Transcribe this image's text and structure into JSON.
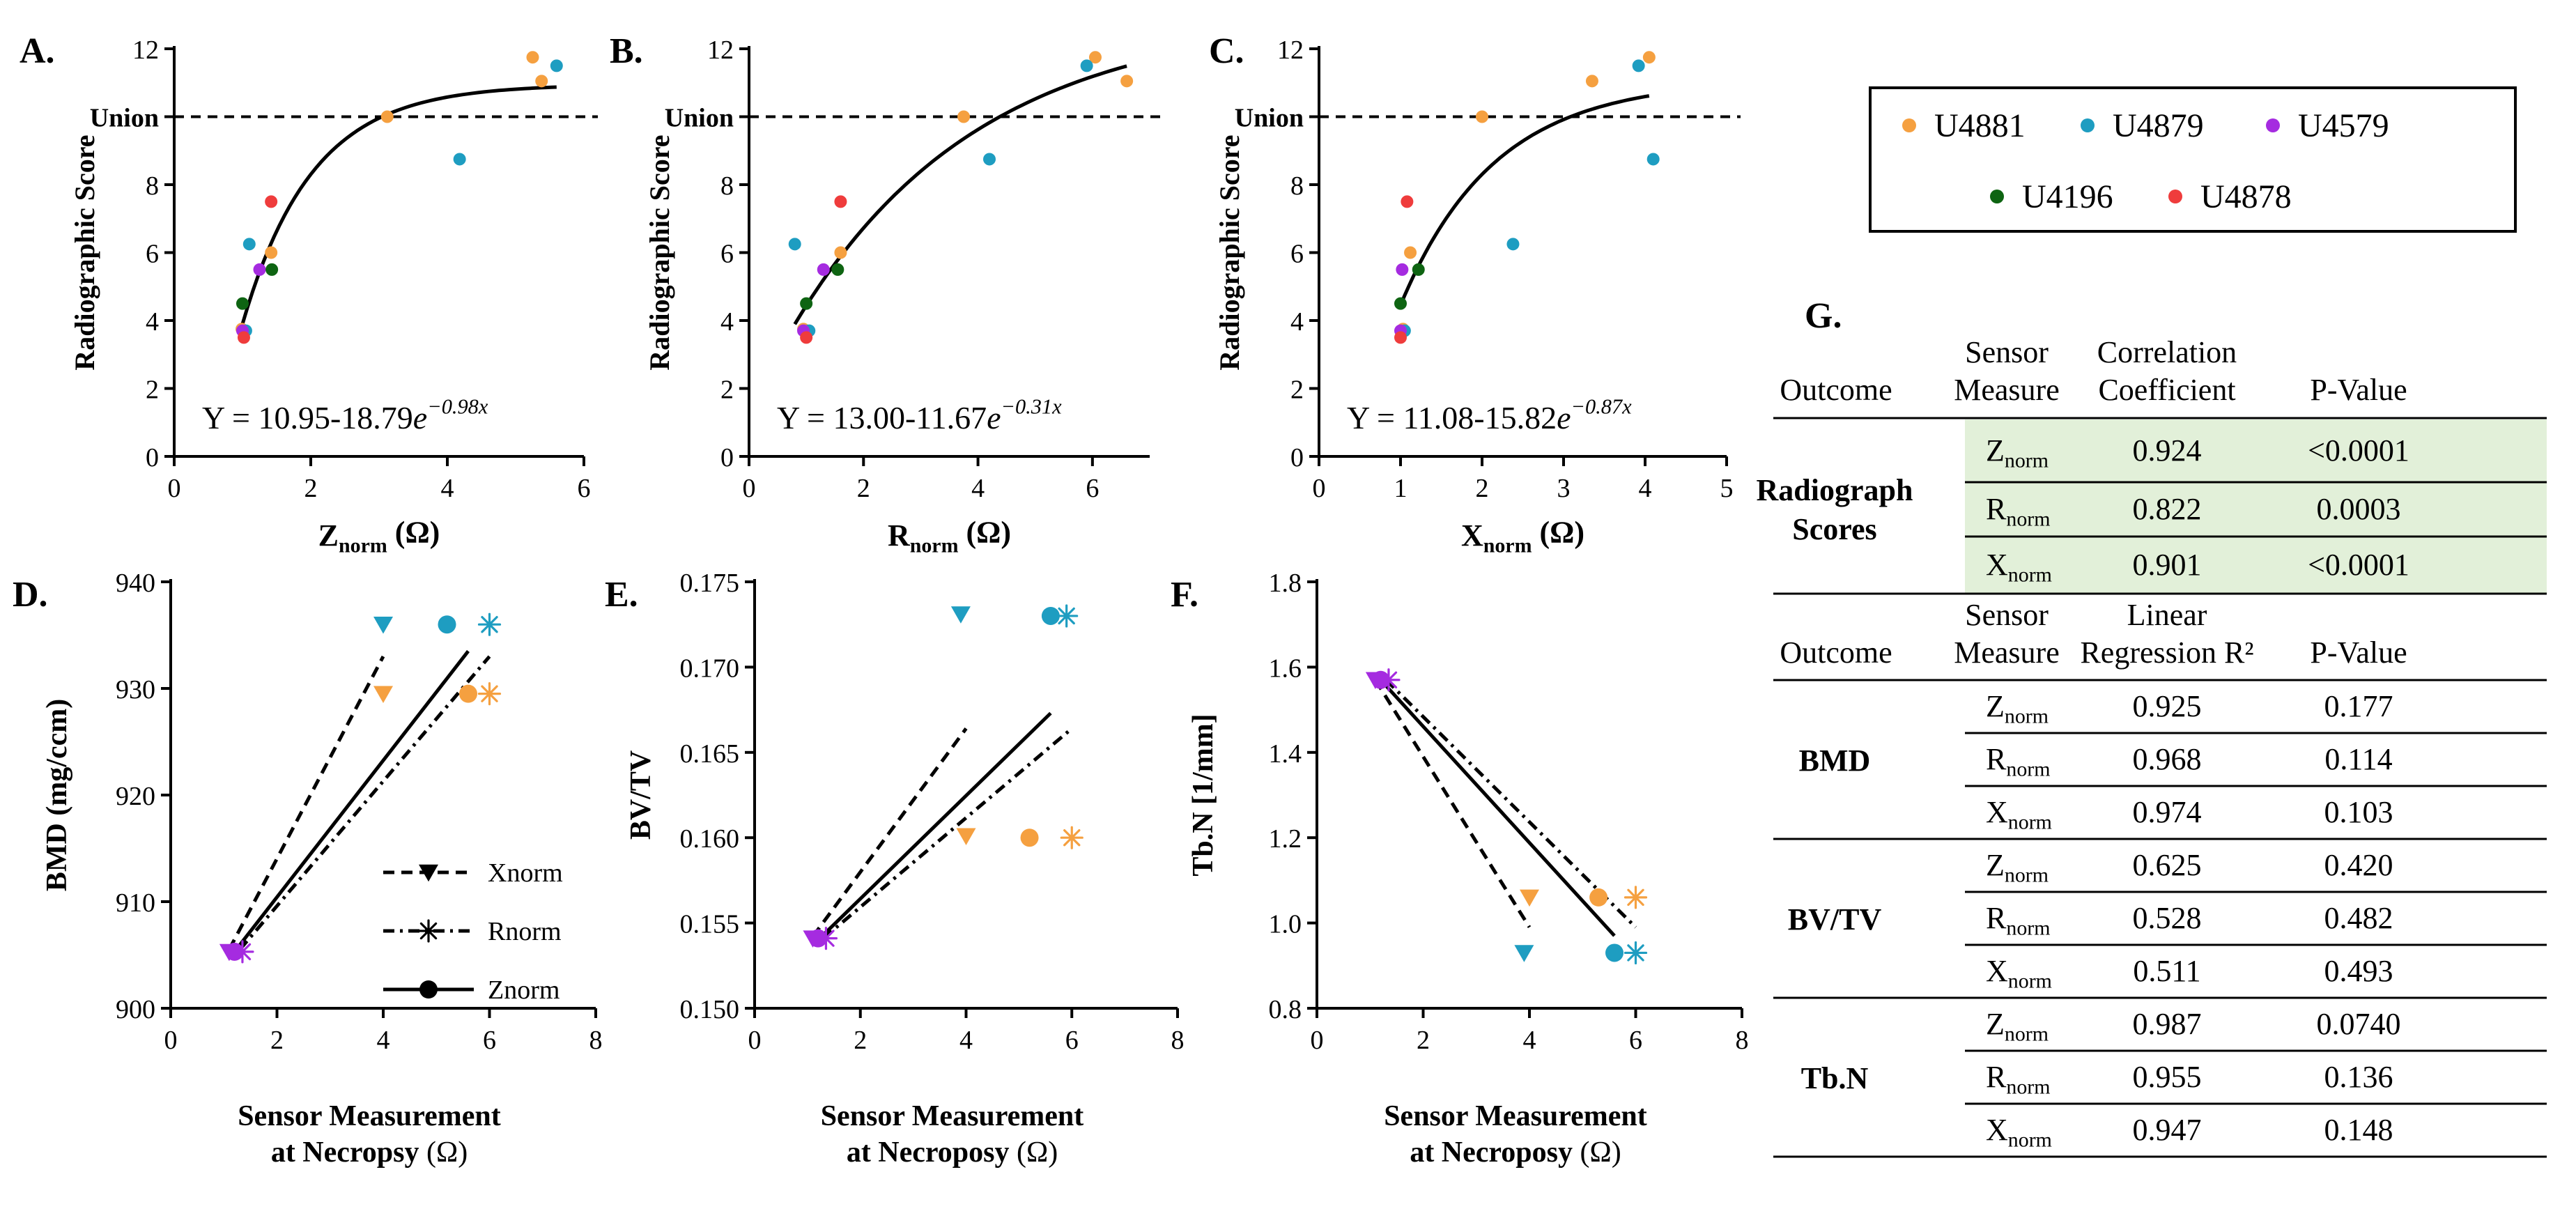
{
  "colors": {
    "U4881": "#F5A040",
    "U4879": "#1E9DC1",
    "U4579": "#A52BE0",
    "U4196": "#0E6412",
    "U4878": "#EF3C3C",
    "axis": "#000000",
    "table_highlight": "#E2F0D9"
  },
  "legend": {
    "entries": [
      {
        "name": "U4881",
        "color": "#F5A040"
      },
      {
        "name": "U4879",
        "color": "#1E9DC1"
      },
      {
        "name": "U4579",
        "color": "#A52BE0"
      },
      {
        "name": "U4196",
        "color": "#0E6412"
      },
      {
        "name": "U4878",
        "color": "#EF3C3C"
      }
    ]
  },
  "chart_data": [
    {
      "panel": "A.",
      "type": "scatter",
      "xlabel_main": "Z",
      "xlabel_sub": "norm",
      "xlabel_unit": " (Ω)",
      "ylabel": "Radiographic Score",
      "xlim": [
        0,
        6
      ],
      "ylim": [
        0,
        12
      ],
      "xticks": [
        0,
        2,
        4,
        6
      ],
      "yticks": [
        0,
        2,
        4,
        6,
        8,
        10,
        12
      ],
      "ytick_labels": [
        "0",
        "2",
        "4",
        "6",
        "8",
        "Union",
        "12"
      ],
      "reference_line": {
        "y": 10,
        "label": "Union",
        "style": "dashed"
      },
      "fit": {
        "a": 10.95,
        "b": 18.79,
        "k": 0.98,
        "x_range": [
          1.0,
          5.6
        ]
      },
      "equation": {
        "prefix": "Y = 10.95-18.79",
        "base": "e",
        "exponent": "−0.98x"
      },
      "points": [
        {
          "x": 0.99,
          "y": 3.75,
          "group": "U4881"
        },
        {
          "x": 1.42,
          "y": 6.0,
          "group": "U4881"
        },
        {
          "x": 3.12,
          "y": 10.0,
          "group": "U4881"
        },
        {
          "x": 5.25,
          "y": 11.75,
          "group": "U4881"
        },
        {
          "x": 5.38,
          "y": 11.05,
          "group": "U4881"
        },
        {
          "x": 1.05,
          "y": 3.7,
          "group": "U4879"
        },
        {
          "x": 1.1,
          "y": 6.25,
          "group": "U4879"
        },
        {
          "x": 4.18,
          "y": 8.75,
          "group": "U4879"
        },
        {
          "x": 5.6,
          "y": 11.5,
          "group": "U4879"
        },
        {
          "x": 1.0,
          "y": 3.7,
          "group": "U4579"
        },
        {
          "x": 1.25,
          "y": 5.5,
          "group": "U4579"
        },
        {
          "x": 1.0,
          "y": 4.5,
          "group": "U4196"
        },
        {
          "x": 1.43,
          "y": 5.5,
          "group": "U4196"
        },
        {
          "x": 1.02,
          "y": 3.5,
          "group": "U4878"
        },
        {
          "x": 1.42,
          "y": 7.5,
          "group": "U4878"
        }
      ]
    },
    {
      "panel": "B.",
      "type": "scatter",
      "xlabel_main": "R",
      "xlabel_sub": "norm",
      "xlabel_unit": " (Ω)",
      "ylabel": "Radiographic Score",
      "xlim": [
        0,
        7
      ],
      "ylim": [
        0,
        12
      ],
      "xticks": [
        0,
        2,
        4,
        6
      ],
      "yticks": [
        0,
        2,
        4,
        6,
        8,
        10,
        12
      ],
      "ytick_labels": [
        "0",
        "2",
        "4",
        "6",
        "8",
        "Union",
        "12"
      ],
      "reference_line": {
        "y": 10,
        "label": "Union",
        "style": "dashed"
      },
      "fit": {
        "a": 13.0,
        "b": 11.67,
        "k": 0.31,
        "x_range": [
          0.8,
          6.6
        ]
      },
      "equation": {
        "prefix": "Y = 13.00-11.67",
        "base": "e",
        "exponent": "−0.31x"
      },
      "points": [
        {
          "x": 0.95,
          "y": 3.75,
          "group": "U4881"
        },
        {
          "x": 1.6,
          "y": 6.0,
          "group": "U4881"
        },
        {
          "x": 3.75,
          "y": 10.0,
          "group": "U4881"
        },
        {
          "x": 6.05,
          "y": 11.75,
          "group": "U4881"
        },
        {
          "x": 6.6,
          "y": 11.05,
          "group": "U4881"
        },
        {
          "x": 1.05,
          "y": 3.7,
          "group": "U4879"
        },
        {
          "x": 0.8,
          "y": 6.25,
          "group": "U4879"
        },
        {
          "x": 4.2,
          "y": 8.75,
          "group": "U4879"
        },
        {
          "x": 5.9,
          "y": 11.5,
          "group": "U4879"
        },
        {
          "x": 0.95,
          "y": 3.7,
          "group": "U4579"
        },
        {
          "x": 1.3,
          "y": 5.5,
          "group": "U4579"
        },
        {
          "x": 1.0,
          "y": 4.5,
          "group": "U4196"
        },
        {
          "x": 1.55,
          "y": 5.5,
          "group": "U4196"
        },
        {
          "x": 1.0,
          "y": 3.5,
          "group": "U4878"
        },
        {
          "x": 1.6,
          "y": 7.5,
          "group": "U4878"
        }
      ]
    },
    {
      "panel": "C.",
      "type": "scatter",
      "xlabel_main": "X",
      "xlabel_sub": "norm",
      "xlabel_unit": " (Ω)",
      "ylabel": "Radiographic Score",
      "xlim": [
        0,
        5
      ],
      "ylim": [
        0,
        12
      ],
      "xticks": [
        0,
        1,
        2,
        3,
        4,
        5
      ],
      "yticks": [
        0,
        2,
        4,
        6,
        8,
        10,
        12
      ],
      "ytick_labels": [
        "0",
        "2",
        "4",
        "6",
        "8",
        "Union",
        "12"
      ],
      "reference_line": {
        "y": 10,
        "label": "Union",
        "style": "dashed"
      },
      "fit": {
        "a": 11.08,
        "b": 15.82,
        "k": 0.87,
        "x_range": [
          1.0,
          4.05
        ]
      },
      "equation": {
        "prefix": "Y = 11.08-15.82",
        "base": "e",
        "exponent": "−0.87x"
      },
      "points": [
        {
          "x": 1.03,
          "y": 3.75,
          "group": "U4881"
        },
        {
          "x": 1.12,
          "y": 6.0,
          "group": "U4881"
        },
        {
          "x": 2.0,
          "y": 10.0,
          "group": "U4881"
        },
        {
          "x": 3.35,
          "y": 11.05,
          "group": "U4881"
        },
        {
          "x": 4.05,
          "y": 11.75,
          "group": "U4881"
        },
        {
          "x": 1.05,
          "y": 3.7,
          "group": "U4879"
        },
        {
          "x": 2.38,
          "y": 6.25,
          "group": "U4879"
        },
        {
          "x": 4.1,
          "y": 8.75,
          "group": "U4879"
        },
        {
          "x": 3.92,
          "y": 11.5,
          "group": "U4879"
        },
        {
          "x": 1.0,
          "y": 3.7,
          "group": "U4579"
        },
        {
          "x": 1.02,
          "y": 5.5,
          "group": "U4579"
        },
        {
          "x": 1.0,
          "y": 4.5,
          "group": "U4196"
        },
        {
          "x": 1.22,
          "y": 5.5,
          "group": "U4196"
        },
        {
          "x": 1.0,
          "y": 3.5,
          "group": "U4878"
        },
        {
          "x": 1.08,
          "y": 7.5,
          "group": "U4878"
        }
      ]
    },
    {
      "panel": "D.",
      "type": "scatter",
      "xlabel_line1": "Sensor Measurement",
      "xlabel_line2": "at Necropsy",
      "xlabel_unit": " (Ω)",
      "ylabel": "BMD (mg/ccm)",
      "xlim": [
        0,
        8
      ],
      "ylim": [
        900,
        940
      ],
      "xticks": [
        0,
        2,
        4,
        6,
        8
      ],
      "yticks": [
        900,
        910,
        920,
        930,
        940
      ],
      "ytick_labels": [
        "900",
        "910",
        "920",
        "930",
        "940"
      ],
      "series": [
        {
          "name": "Xnorm",
          "marker": "triangle",
          "line": "dashed",
          "line_x": [
            1.1,
            4.0
          ],
          "line_y": [
            905.5,
            933.0
          ],
          "points": [
            {
              "x": 1.1,
              "y": 905.3,
              "group": "U4579"
            },
            {
              "x": 4.0,
              "y": 929.5,
              "group": "U4881"
            },
            {
              "x": 4.0,
              "y": 936.0,
              "group": "U4879"
            }
          ]
        },
        {
          "name": "Rnorm",
          "marker": "asterisk",
          "line": "dashdot",
          "line_x": [
            1.3,
            6.0
          ],
          "line_y": [
            905.5,
            933.0
          ],
          "points": [
            {
              "x": 1.35,
              "y": 905.3,
              "group": "U4579"
            },
            {
              "x": 6.0,
              "y": 929.5,
              "group": "U4881"
            },
            {
              "x": 6.0,
              "y": 936.0,
              "group": "U4879"
            }
          ]
        },
        {
          "name": "Znorm",
          "marker": "circle",
          "line": "solid",
          "line_x": [
            1.2,
            5.6
          ],
          "line_y": [
            905.3,
            933.5
          ],
          "points": [
            {
              "x": 1.2,
              "y": 905.3,
              "group": "U4579"
            },
            {
              "x": 5.6,
              "y": 929.5,
              "group": "U4881"
            },
            {
              "x": 5.2,
              "y": 936.0,
              "group": "U4879"
            }
          ]
        }
      ],
      "legend_items": [
        "Xnorm",
        "Rnorm",
        "Znorm"
      ]
    },
    {
      "panel": "E.",
      "type": "scatter",
      "xlabel_line1": "Sensor Measurement",
      "xlabel_line2": "at Necroposy",
      "xlabel_unit": " (Ω)",
      "ylabel": "BV/TV",
      "xlim": [
        0,
        8
      ],
      "ylim": [
        0.15,
        0.175
      ],
      "xticks": [
        0,
        2,
        4,
        6,
        8
      ],
      "yticks": [
        0.15,
        0.155,
        0.16,
        0.165,
        0.17,
        0.175
      ],
      "ytick_labels": [
        "0.150",
        "0.155",
        "0.160",
        "0.165",
        "0.170",
        "0.175"
      ],
      "series": [
        {
          "name": "Xnorm",
          "marker": "triangle",
          "line": "dashed",
          "line_x": [
            1.1,
            4.0
          ],
          "line_y": [
            0.1542,
            0.1664
          ],
          "points": [
            {
              "x": 1.1,
              "y": 0.1541,
              "group": "U4579"
            },
            {
              "x": 4.0,
              "y": 0.1601,
              "group": "U4881"
            },
            {
              "x": 3.9,
              "y": 0.1731,
              "group": "U4879"
            }
          ]
        },
        {
          "name": "Rnorm",
          "marker": "asterisk",
          "line": "dashdot",
          "line_x": [
            1.3,
            6.0
          ],
          "line_y": [
            0.1541,
            0.1664
          ],
          "points": [
            {
              "x": 1.35,
              "y": 0.1541,
              "group": "U4579"
            },
            {
              "x": 6.0,
              "y": 0.16,
              "group": "U4881"
            },
            {
              "x": 5.9,
              "y": 0.173,
              "group": "U4879"
            }
          ]
        },
        {
          "name": "Znorm",
          "marker": "circle",
          "line": "solid",
          "line_x": [
            1.2,
            5.6
          ],
          "line_y": [
            0.154,
            0.1673
          ],
          "points": [
            {
              "x": 1.2,
              "y": 0.1541,
              "group": "U4579"
            },
            {
              "x": 5.2,
              "y": 0.16,
              "group": "U4881"
            },
            {
              "x": 5.6,
              "y": 0.173,
              "group": "U4879"
            }
          ]
        }
      ]
    },
    {
      "panel": "F.",
      "type": "scatter",
      "xlabel_line1": "Sensor Measurement",
      "xlabel_line2": "at Necroposy",
      "xlabel_unit": " (Ω)",
      "ylabel": "Tb.N [1/mm]",
      "xlim": [
        0,
        8
      ],
      "ylim": [
        0.8,
        1.8
      ],
      "xticks": [
        0,
        2,
        4,
        6,
        8
      ],
      "yticks": [
        0.8,
        1.0,
        1.2,
        1.4,
        1.6,
        1.8
      ],
      "ytick_labels": [
        "0.8",
        "1.0",
        "1.2",
        "1.4",
        "1.6",
        "1.8"
      ],
      "series": [
        {
          "name": "Xnorm",
          "marker": "triangle",
          "line": "dashed",
          "line_x": [
            1.1,
            4.0
          ],
          "line_y": [
            1.57,
            0.99
          ],
          "points": [
            {
              "x": 1.1,
              "y": 1.57,
              "group": "U4579"
            },
            {
              "x": 4.0,
              "y": 1.06,
              "group": "U4881"
            },
            {
              "x": 3.9,
              "y": 0.93,
              "group": "U4879"
            }
          ]
        },
        {
          "name": "Rnorm",
          "marker": "asterisk",
          "line": "dashdot",
          "line_x": [
            1.3,
            6.0
          ],
          "line_y": [
            1.57,
            0.99
          ],
          "points": [
            {
              "x": 1.35,
              "y": 1.57,
              "group": "U4579"
            },
            {
              "x": 6.0,
              "y": 1.06,
              "group": "U4881"
            },
            {
              "x": 6.0,
              "y": 0.93,
              "group": "U4879"
            }
          ]
        },
        {
          "name": "Znorm",
          "marker": "circle",
          "line": "solid",
          "line_x": [
            1.2,
            5.6
          ],
          "line_y": [
            1.57,
            0.97
          ],
          "points": [
            {
              "x": 1.2,
              "y": 1.57,
              "group": "U4579"
            },
            {
              "x": 5.3,
              "y": 1.06,
              "group": "U4881"
            },
            {
              "x": 5.6,
              "y": 0.93,
              "group": "U4879"
            }
          ]
        }
      ]
    }
  ],
  "table": {
    "panel": "G.",
    "section1": {
      "headers": [
        [
          "Outcome"
        ],
        [
          "Sensor",
          "Measure"
        ],
        [
          "Correlation",
          "Coefficient"
        ],
        [
          "P-Value"
        ]
      ],
      "group": [
        "Radiograph",
        "Scores"
      ],
      "rows": [
        {
          "measure": "Z",
          "sub": "norm",
          "value": "0.924",
          "p": "<0.0001"
        },
        {
          "measure": "R",
          "sub": "norm",
          "value": "0.822",
          "p": "0.0003"
        },
        {
          "measure": "X",
          "sub": "norm",
          "value": "0.901",
          "p": "<0.0001"
        }
      ]
    },
    "section2": {
      "headers": [
        [
          "Outcome"
        ],
        [
          "Sensor",
          "Measure"
        ],
        [
          "Linear",
          "Regression R²"
        ],
        [
          "P-Value"
        ]
      ],
      "groups": [
        {
          "name": "BMD",
          "rows": [
            {
              "measure": "Z",
              "sub": "norm",
              "value": "0.925",
              "p": "0.177"
            },
            {
              "measure": "R",
              "sub": "norm",
              "value": "0.968",
              "p": "0.114"
            },
            {
              "measure": "X",
              "sub": "norm",
              "value": "0.974",
              "p": "0.103"
            }
          ]
        },
        {
          "name": "BV/TV",
          "rows": [
            {
              "measure": "Z",
              "sub": "norm",
              "value": "0.625",
              "p": "0.420"
            },
            {
              "measure": "R",
              "sub": "norm",
              "value": "0.528",
              "p": "0.482"
            },
            {
              "measure": "X",
              "sub": "norm",
              "value": "0.511",
              "p": "0.493"
            }
          ]
        },
        {
          "name": "Tb.N",
          "rows": [
            {
              "measure": "Z",
              "sub": "norm",
              "value": "0.987",
              "p": "0.0740"
            },
            {
              "measure": "R",
              "sub": "norm",
              "value": "0.955",
              "p": "0.136"
            },
            {
              "measure": "X",
              "sub": "norm",
              "value": "0.947",
              "p": "0.148"
            }
          ]
        }
      ]
    }
  }
}
